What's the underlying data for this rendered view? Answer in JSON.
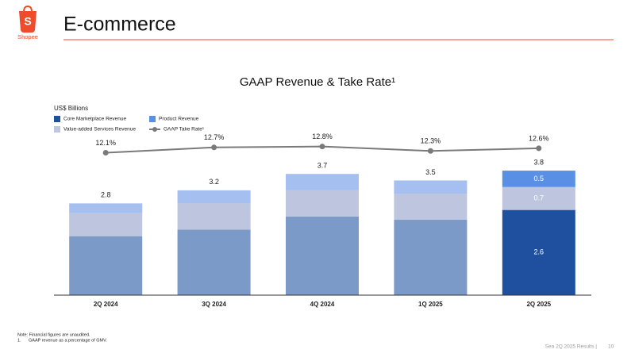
{
  "brand": "Shopee",
  "header": "E-commerce",
  "chart_data": {
    "type": "bar",
    "stacked": true,
    "title": "GAAP Revenue & Take Rate¹",
    "y_label": "US$ Billions",
    "categories": [
      "2Q 2024",
      "3Q 2024",
      "4Q 2024",
      "1Q 2025",
      "2Q 2025"
    ],
    "highlight_category": "2Q 2025",
    "series": [
      {
        "name": "Core Marketplace Revenue",
        "color": "#1f4f9f",
        "muted_color": "#7b9ac7",
        "values": [
          1.8,
          2.0,
          2.4,
          2.3,
          2.6
        ]
      },
      {
        "name": "Value-added Services Revenue",
        "color": "#bdc6de",
        "muted_color": "#bdc6de",
        "values": [
          0.7,
          0.8,
          0.8,
          0.8,
          0.7
        ]
      },
      {
        "name": "Product Revenue",
        "color": "#5a8fe6",
        "muted_color": "#a4bff0",
        "values": [
          0.3,
          0.4,
          0.5,
          0.4,
          0.5
        ]
      },
      {
        "name": "GAAP Take Rate¹",
        "type": "line",
        "axis": "y2",
        "color": "#7a7a7a",
        "values": [
          12.1,
          12.7,
          12.8,
          12.3,
          12.6
        ],
        "value_labels": [
          "12.1%",
          "12.7%",
          "12.8%",
          "12.3%",
          "12.6%"
        ]
      }
    ],
    "totals": [
      2.8,
      3.2,
      3.7,
      3.5,
      3.8
    ],
    "ylim": [
      0,
      5.4
    ],
    "y2lim": [
      -4,
      16
    ]
  },
  "notes": [
    "Note: Financial figures are unaudited.",
    "1.",
    "GAAP revenue as a percentage of GMV."
  ],
  "footer": {
    "text": "Sea 2Q 2025 Results |",
    "page": "10"
  }
}
